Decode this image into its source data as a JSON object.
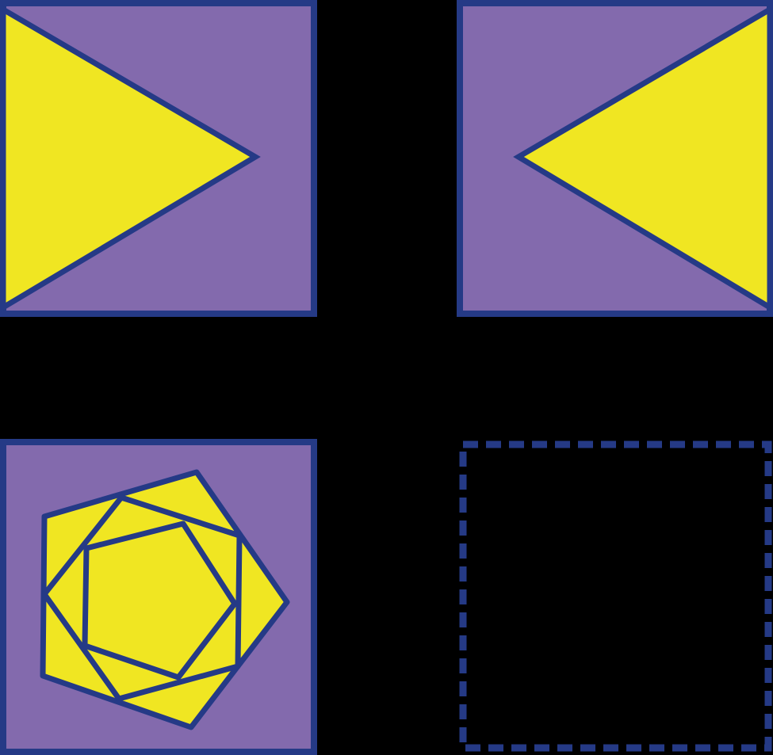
{
  "colors": {
    "background": "#000000",
    "panel_fill": "#836aad",
    "shape_fill": "#f0e622",
    "stroke": "#253a86",
    "answer_fill": "#000000"
  },
  "puzzle": {
    "panels": [
      {
        "id": "top-left",
        "shape": "triangle pointing right"
      },
      {
        "id": "top-right",
        "shape": "triangle pointing left"
      },
      {
        "id": "bottom-left",
        "shape": "nested rotated pentagons"
      },
      {
        "id": "bottom-right",
        "shape": "empty answer slot"
      }
    ]
  }
}
